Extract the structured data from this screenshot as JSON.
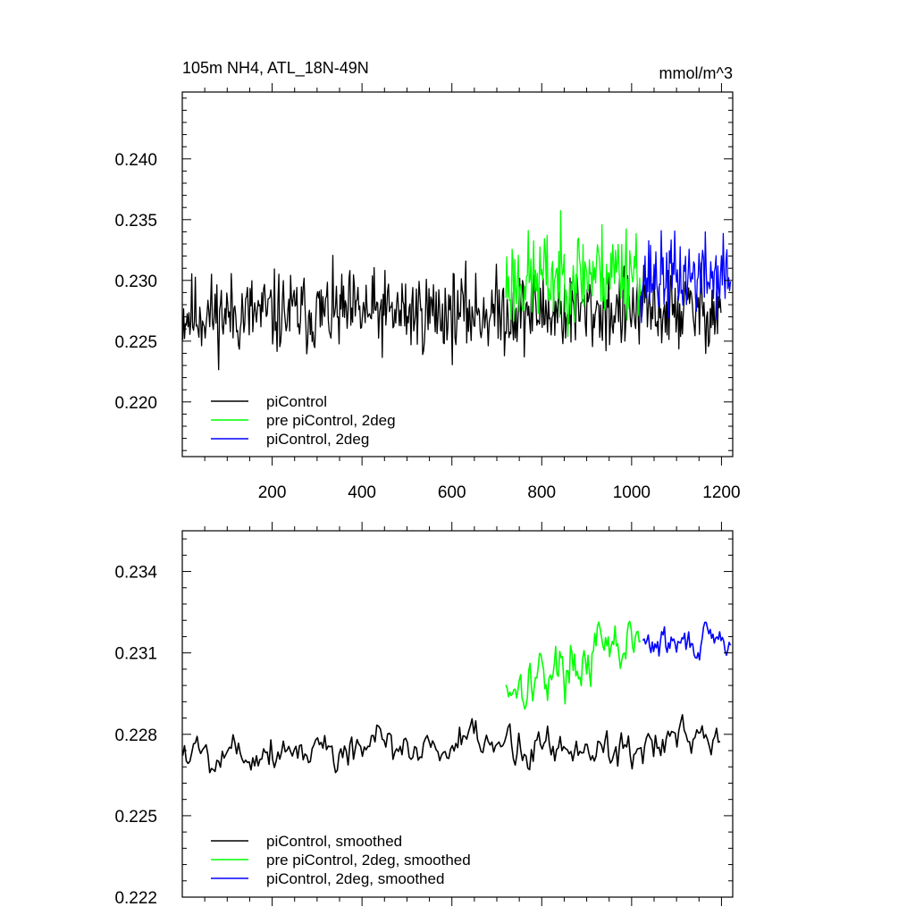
{
  "chart_data": [
    {
      "type": "line",
      "title": "105m NH4, ATL_18N-49N",
      "units": "mmol/m^3",
      "xlim": [
        0,
        1225
      ],
      "ylim": [
        0.2155,
        0.2455
      ],
      "x_ticks": [
        200,
        400,
        600,
        800,
        1000,
        1200
      ],
      "y_ticks": [
        0.22,
        0.225,
        0.23,
        0.235,
        0.24
      ],
      "legend_position": "bottom-left",
      "series": [
        {
          "name": "piControl",
          "color": "#000000",
          "x_start": 1,
          "x_end": 1200,
          "step": 2,
          "mean": 0.2272,
          "amp": 0.005,
          "slope": 3e-07,
          "lo": 0.2168,
          "hi": 0.2338,
          "seed": 11
        },
        {
          "name": "pre piControl, 2deg",
          "color": "#00ff00",
          "x_start": 720,
          "x_end": 1020,
          "step": 2,
          "mean": 0.2298,
          "amp": 0.0058,
          "slope": 4.5e-06,
          "lo": 0.2212,
          "hi": 0.2415,
          "seed": 23
        },
        {
          "name": "piControl, 2deg",
          "color": "#0000ff",
          "x_start": 1020,
          "x_end": 1220,
          "step": 2,
          "mean": 0.2303,
          "amp": 0.005,
          "slope": 5e-07,
          "lo": 0.2205,
          "hi": 0.239,
          "seed": 37
        }
      ]
    },
    {
      "type": "line",
      "title": "",
      "xlim": [
        0,
        1225
      ],
      "ylim": [
        0.222,
        0.2355
      ],
      "x_ticks": [
        200,
        400,
        600,
        800,
        1000,
        1200
      ],
      "y_ticks": [
        0.222,
        0.225,
        0.228,
        0.231,
        0.234
      ],
      "legend_position": "bottom-left",
      "series": [
        {
          "name": "piControl, smoothed",
          "color": "#000000",
          "x_start": 1,
          "x_end": 1200,
          "step": 4,
          "mean": 0.2274,
          "amp": 0.0011,
          "slope": 2e-07,
          "lo": 0.2243,
          "hi": 0.2301,
          "seed": 5
        },
        {
          "name": "pre piControl, 2deg, smoothed",
          "color": "#00ff00",
          "x_start": 720,
          "x_end": 1020,
          "step": 3,
          "mean": 0.2298,
          "amp": 0.0014,
          "slope": 5.5e-06,
          "lo": 0.2262,
          "hi": 0.2344,
          "seed": 17
        },
        {
          "name": "piControl, 2deg, smoothed",
          "color": "#0000ff",
          "x_start": 1025,
          "x_end": 1220,
          "step": 3,
          "mean": 0.2313,
          "amp": 0.0008,
          "slope": 4e-07,
          "lo": 0.2293,
          "hi": 0.233,
          "seed": 29
        }
      ]
    }
  ]
}
